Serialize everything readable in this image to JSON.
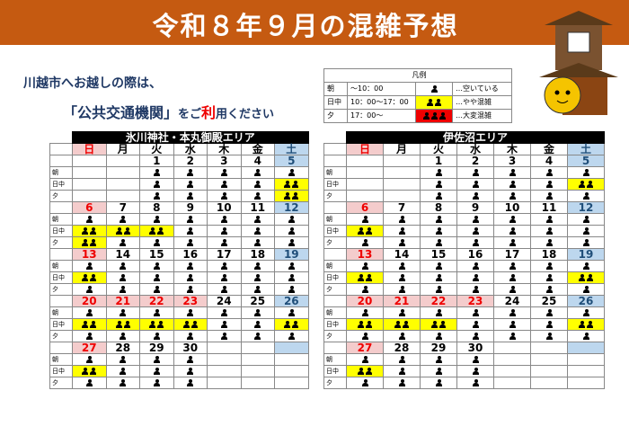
{
  "header": {
    "title": "令和８年９月の混雑予想"
  },
  "notice": {
    "line1": "川越市へお越しの際は、",
    "line2": [
      "「公共交通機関」",
      "をご",
      "利",
      "用ください"
    ]
  },
  "legend": {
    "title": "凡例",
    "rows": [
      {
        "period": "朝",
        "time": "～10：00",
        "level": 1,
        "text": "…空いている"
      },
      {
        "period": "日中",
        "time": "10：00～17：00",
        "level": 2,
        "text": "…やや混雑"
      },
      {
        "period": "夕",
        "time": "17：00～",
        "level": 3,
        "text": "…大変混雑"
      }
    ]
  },
  "weekdays": [
    "日",
    "月",
    "火",
    "水",
    "木",
    "金",
    "土"
  ],
  "period_labels": [
    "朝",
    "日中",
    "夕"
  ],
  "calendars": [
    {
      "area": "氷川神社・本丸御殿エリア",
      "weeks": [
        {
          "dates": [
            null,
            null,
            1,
            2,
            3,
            4,
            5
          ],
          "holiday_cols": [],
          "levels": [
            [
              null,
              null,
              1,
              1,
              1,
              1,
              1
            ],
            [
              null,
              null,
              1,
              1,
              1,
              1,
              2
            ],
            [
              null,
              null,
              1,
              1,
              1,
              1,
              2
            ]
          ]
        },
        {
          "dates": [
            6,
            7,
            8,
            9,
            10,
            11,
            12
          ],
          "holiday_cols": [],
          "levels": [
            [
              1,
              1,
              1,
              1,
              1,
              1,
              1
            ],
            [
              2,
              2,
              2,
              1,
              1,
              1,
              1
            ],
            [
              2,
              1,
              1,
              1,
              1,
              1,
              1
            ]
          ]
        },
        {
          "dates": [
            13,
            14,
            15,
            16,
            17,
            18,
            19
          ],
          "holiday_cols": [],
          "levels": [
            [
              1,
              1,
              1,
              1,
              1,
              1,
              1
            ],
            [
              2,
              1,
              1,
              1,
              1,
              1,
              1
            ],
            [
              1,
              1,
              1,
              1,
              1,
              1,
              1
            ]
          ]
        },
        {
          "dates": [
            20,
            21,
            22,
            23,
            24,
            25,
            26
          ],
          "holiday_cols": [
            1,
            2,
            3
          ],
          "levels": [
            [
              1,
              1,
              1,
              1,
              1,
              1,
              1
            ],
            [
              2,
              2,
              2,
              2,
              1,
              1,
              2
            ],
            [
              1,
              1,
              1,
              1,
              1,
              1,
              1
            ]
          ]
        },
        {
          "dates": [
            27,
            28,
            29,
            30,
            null,
            null,
            null
          ],
          "holiday_cols": [],
          "levels": [
            [
              1,
              1,
              1,
              1,
              null,
              null,
              null
            ],
            [
              2,
              1,
              1,
              1,
              null,
              null,
              null
            ],
            [
              1,
              1,
              1,
              1,
              null,
              null,
              null
            ]
          ]
        }
      ]
    },
    {
      "area": "伊佐沼エリア",
      "weeks": [
        {
          "dates": [
            null,
            null,
            1,
            2,
            3,
            4,
            5
          ],
          "holiday_cols": [],
          "levels": [
            [
              null,
              null,
              1,
              1,
              1,
              1,
              1
            ],
            [
              null,
              null,
              1,
              1,
              1,
              1,
              2
            ],
            [
              null,
              null,
              1,
              1,
              1,
              1,
              1
            ]
          ]
        },
        {
          "dates": [
            6,
            7,
            8,
            9,
            10,
            11,
            12
          ],
          "holiday_cols": [],
          "levels": [
            [
              1,
              1,
              1,
              1,
              1,
              1,
              1
            ],
            [
              2,
              1,
              1,
              1,
              1,
              1,
              1
            ],
            [
              1,
              1,
              1,
              1,
              1,
              1,
              1
            ]
          ]
        },
        {
          "dates": [
            13,
            14,
            15,
            16,
            17,
            18,
            19
          ],
          "holiday_cols": [],
          "levels": [
            [
              1,
              1,
              1,
              1,
              1,
              1,
              1
            ],
            [
              2,
              1,
              1,
              1,
              1,
              1,
              2
            ],
            [
              1,
              1,
              1,
              1,
              1,
              1,
              1
            ]
          ]
        },
        {
          "dates": [
            20,
            21,
            22,
            23,
            24,
            25,
            26
          ],
          "holiday_cols": [
            1,
            2,
            3
          ],
          "levels": [
            [
              1,
              1,
              1,
              1,
              1,
              1,
              1
            ],
            [
              2,
              2,
              2,
              1,
              1,
              1,
              2
            ],
            [
              1,
              1,
              1,
              1,
              1,
              1,
              1
            ]
          ]
        },
        {
          "dates": [
            27,
            28,
            29,
            30,
            null,
            null,
            null
          ],
          "holiday_cols": [],
          "levels": [
            [
              1,
              1,
              1,
              1,
              null,
              null,
              null
            ],
            [
              2,
              1,
              1,
              1,
              null,
              null,
              null
            ],
            [
              1,
              1,
              1,
              1,
              null,
              null,
              null
            ]
          ]
        }
      ]
    }
  ]
}
